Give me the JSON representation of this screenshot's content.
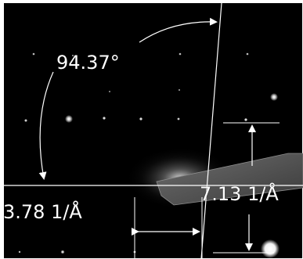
{
  "annotations": {
    "angle": "94.37°",
    "spacing_a": "3.78 1/Å",
    "spacing_b": "7.13 1/Å"
  },
  "colors": {
    "background": "#000000",
    "annotation": "#ffffff",
    "frame": "#ffffff"
  }
}
